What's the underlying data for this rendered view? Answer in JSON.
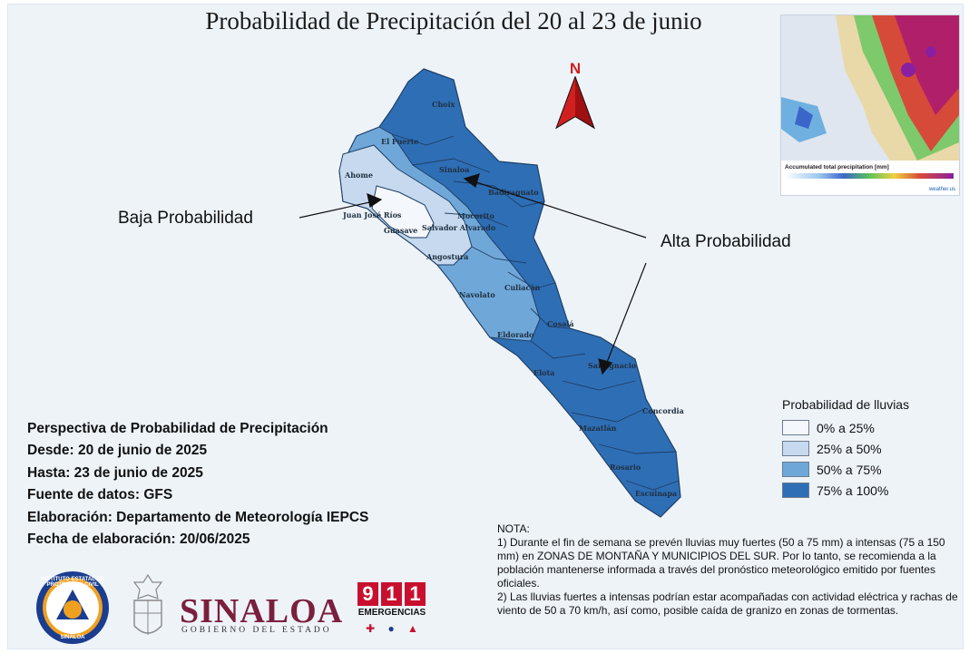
{
  "title": "Probabilidad de Precipitación del 20 al 23 de junio",
  "north_label": "N",
  "callouts": {
    "low": "Baja Probabilidad",
    "high": "Alta Probabilidad"
  },
  "municipalities": [
    {
      "name": "Choix",
      "class": "75% a 100%"
    },
    {
      "name": "El Fuerte",
      "class": "50% a 75%"
    },
    {
      "name": "Ahome",
      "class": "25% a 50%"
    },
    {
      "name": "Sinaloa",
      "class": "75% a 100%"
    },
    {
      "name": "Badiraguato",
      "class": "75% a 100%"
    },
    {
      "name": "Juan José Ríos",
      "class": "0% a 25%"
    },
    {
      "name": "Guasave",
      "class": "0% a 25%"
    },
    {
      "name": "Mocorito",
      "class": "75% a 100%"
    },
    {
      "name": "Salvador Alvarado",
      "class": "25% a 50%"
    },
    {
      "name": "Angostura",
      "class": "25% a 50%"
    },
    {
      "name": "Culiacán",
      "class": "50% a 75%"
    },
    {
      "name": "Navolato",
      "class": "50% a 75%"
    },
    {
      "name": "Cosalá",
      "class": "75% a 100%"
    },
    {
      "name": "Eldorado",
      "class": "50% a 75%"
    },
    {
      "name": "Elota",
      "class": "75% a 100%"
    },
    {
      "name": "San Ignacio",
      "class": "75% a 100%"
    },
    {
      "name": "Concordia",
      "class": "75% a 100%"
    },
    {
      "name": "Mazatlán",
      "class": "75% a 100%"
    },
    {
      "name": "Rosario",
      "class": "75% a 100%"
    },
    {
      "name": "Escuinapa",
      "class": "75% a 100%"
    }
  ],
  "map_labels": {
    "choix": "Choix",
    "el_fuerte": "El Fuerte",
    "ahome": "Ahome",
    "sinaloa": "Sinaloa",
    "badiraguato": "Badiraguato",
    "juan_jose_rios": "Juan José Ríos",
    "guasave": "Guasave",
    "mocorito": "Mocorito",
    "salvador_alvarado": "Salvador Alvarado",
    "angostura": "Angostura",
    "culiacan": "Culiacán",
    "navolato": "Navolato",
    "cosala": "Cosalá",
    "eldorado": "Eldorado",
    "elota": "Elota",
    "san_ignacio": "San Ignacio",
    "concordia": "Concordia",
    "mazatlan": "Mazatlán",
    "rosario": "Rosario",
    "escuinapa": "Escuinapa"
  },
  "legend": {
    "title": "Probabilidad de lluvias",
    "items": [
      {
        "label": "0% a 25%",
        "color": "#f4f7fb"
      },
      {
        "label": "25% a 50%",
        "color": "#c6d9ee"
      },
      {
        "label": "50% a 75%",
        "color": "#6fa7d8"
      },
      {
        "label": "75% a 100%",
        "color": "#2e6eb5"
      }
    ]
  },
  "info": {
    "line1": "Perspectiva de Probabilidad de Precipitación",
    "line2": "Desde: 20 de junio de 2025",
    "line3": "Hasta: 23 de junio de 2025",
    "line4": "Fuente de datos: GFS",
    "line5": "Elaboración: Departamento de Meteorología IEPCS",
    "line6": "Fecha de elaboración: 20/06/2025"
  },
  "nota": {
    "heading": "NOTA:",
    "p1": "1) Durante el fin de semana se prevén lluvias muy fuertes (50 a 75 mm) a intensas (75 a 150 mm) en ZONAS DE MONTAÑA Y MUNICIPIOS DEL SUR. Por lo tanto, se recomienda a la población mantenerse informada a través del pronóstico meteorológico emitido por fuentes oficiales.",
    "p2": "2) Las lluvias fuertes a intensas podrían estar acompañadas con actividad eléctrica y rachas de viento de 50 a 70 km/h, así como, posible caída de granizo en zonas de tormentas."
  },
  "inset": {
    "caption": "Accumulated total precipitation [mm]",
    "brand": "weather.us"
  },
  "logos": {
    "pc_top": "INSTITUTO ESTATAL DE PROTECCION CIVIL",
    "pc_bottom": "SINALOA",
    "sinaloa": "SINALOA",
    "gobierno": "GOBIERNO DEL ESTADO",
    "digits": [
      "9",
      "1",
      "1"
    ],
    "emergencias": "EMERGENCIAS"
  },
  "colors": {
    "map_bg": "#eef3f8",
    "class_0_25": "#f4f7fb",
    "class_25_50": "#c6d9ee",
    "class_50_75": "#6fa7d8",
    "class_75_100": "#2e6eb5",
    "border": "#1f3f66",
    "north_arrow": "#d02020",
    "sinaloa_brand": "#7a1f3d",
    "e911_red": "#c8102e"
  }
}
